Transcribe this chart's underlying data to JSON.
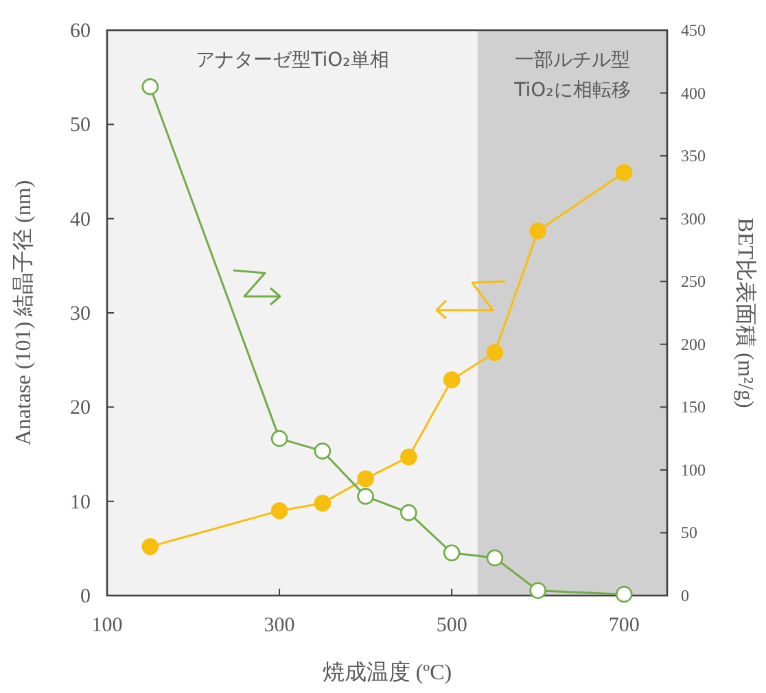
{
  "chart_data": {
    "type": "line",
    "xlabel": "焼成温度 (ºC)",
    "ylabel": "Anatase (101) 結晶子径 (nm)",
    "y2label": "BET比表面積 (m²/g)",
    "x": [
      150,
      300,
      350,
      400,
      450,
      500,
      550,
      600,
      700
    ],
    "series": [
      {
        "color": "#f7be0f",
        "values": [
          5.2,
          9.0,
          9.8,
          12.4,
          14.7,
          22.9,
          25.8,
          38.7,
          44.9
        ]
      },
      {
        "color": "#70ad47",
        "axis": "y2",
        "values": [
          405,
          125,
          115,
          79,
          66,
          34,
          30,
          4,
          1
        ]
      }
    ],
    "xlim": [
      100,
      750
    ],
    "xticks": [
      100,
      300,
      500,
      700
    ],
    "ylim": [
      0,
      60
    ],
    "yticks": [
      0,
      10,
      20,
      30,
      40,
      50,
      60
    ],
    "y2lim": [
      0,
      450
    ],
    "y2ticks": [
      0,
      50,
      100,
      150,
      200,
      250,
      300,
      350,
      400,
      450
    ],
    "bands": [
      {
        "axis": "x",
        "from": 100,
        "to": 530,
        "label": "アナターゼ型TiO₂単相",
        "color": "#f2f2f2"
      },
      {
        "axis": "x",
        "from": 530,
        "to": 750,
        "label": "一部ルチル型\nTiO₂に相転移",
        "color": "#d0d0d0"
      }
    ],
    "marker": "circle",
    "line_style": "solid",
    "grid": false
  }
}
